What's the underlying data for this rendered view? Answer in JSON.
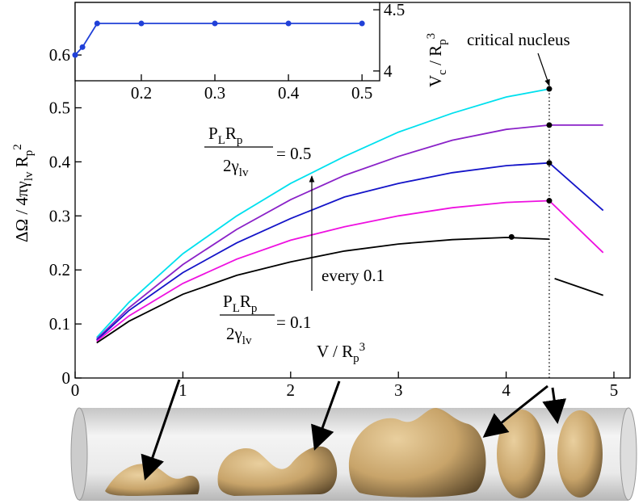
{
  "chart_data": [
    {
      "type": "line",
      "xlabel": [
        {
          "t": "V / R"
        },
        {
          "t": "p",
          "s": "sub"
        },
        {
          "t": "3",
          "s": "sup"
        }
      ],
      "ylabel": [
        {
          "t": "ΔΩ / 4πγ"
        },
        {
          "t": "lv",
          "s": "sub"
        },
        {
          "t": " R"
        },
        {
          "t": "p",
          "s": "sub"
        },
        {
          "t": "2",
          "s": "sup"
        }
      ],
      "xlim": [
        0,
        5.15
      ],
      "ylim": [
        0,
        0.695
      ],
      "xticks": [
        0,
        1,
        2,
        3,
        4,
        5
      ],
      "yticks": [
        0,
        0.1,
        0.2,
        0.3,
        0.4,
        0.5
      ],
      "series": [
        {
          "color": "#00e0ee",
          "x": [
            0.2,
            0.5,
            1,
            1.5,
            2,
            2.5,
            3,
            3.5,
            4,
            4.4
          ],
          "values": [
            0.075,
            0.14,
            0.23,
            0.3,
            0.36,
            0.41,
            0.455,
            0.49,
            0.52,
            0.535
          ]
        },
        {
          "color": "#8a22c8",
          "x": [
            0.2,
            0.5,
            1,
            1.5,
            2,
            2.5,
            3,
            3.5,
            4,
            4.4,
            4.9
          ],
          "values": [
            0.072,
            0.13,
            0.21,
            0.275,
            0.33,
            0.375,
            0.41,
            0.44,
            0.46,
            0.468,
            0.468
          ]
        },
        {
          "color": "#1414c8",
          "x": [
            0.2,
            0.5,
            1,
            1.5,
            2,
            2.5,
            3,
            3.5,
            4,
            4.4,
            4.9
          ],
          "values": [
            0.07,
            0.125,
            0.195,
            0.25,
            0.295,
            0.335,
            0.36,
            0.38,
            0.393,
            0.398,
            0.31
          ]
        },
        {
          "color": "#ee10e0",
          "x": [
            0.2,
            0.5,
            1,
            1.5,
            2,
            2.5,
            3,
            3.5,
            4,
            4.4,
            4.9
          ],
          "values": [
            0.068,
            0.115,
            0.175,
            0.22,
            0.255,
            0.28,
            0.3,
            0.315,
            0.325,
            0.328,
            0.232
          ]
        },
        {
          "color": "#000000",
          "x": [
            0.2,
            0.5,
            1,
            1.5,
            2,
            2.5,
            3,
            3.5,
            4,
            4.4,
            4.42,
            4.45,
            4.9
          ],
          "values": [
            0.065,
            0.105,
            0.155,
            0.19,
            0.215,
            0.235,
            0.248,
            0.256,
            0.26,
            0.257,
            null,
            0.184,
            0.153
          ]
        }
      ],
      "markers": {
        "x": [
          4.4,
          4.4,
          4.4,
          4.4,
          4.05
        ],
        "values": [
          0.535,
          0.468,
          0.398,
          0.328,
          0.261
        ]
      },
      "vline_x": 4.4,
      "annotations": {
        "critical": [
          {
            "t": "critical nucleus"
          }
        ],
        "every": [
          {
            "t": "every 0.1"
          }
        ],
        "top_num": [
          {
            "t": "P"
          },
          {
            "t": "L",
            "s": "sub"
          },
          {
            "t": "R"
          },
          {
            "t": "p",
            "s": "sub"
          }
        ],
        "top_den": [
          {
            "t": "2γ"
          },
          {
            "t": "lv",
            "s": "sub"
          }
        ],
        "top_eq": [
          {
            "t": "= 0.5"
          }
        ],
        "bot_num": [
          {
            "t": "P"
          },
          {
            "t": "L",
            "s": "sub"
          },
          {
            "t": "R"
          },
          {
            "t": "p",
            "s": "sub"
          }
        ],
        "bot_den": [
          {
            "t": "2γ"
          },
          {
            "t": "lv",
            "s": "sub"
          }
        ],
        "bot_eq": [
          {
            "t": "= 0.1"
          }
        ]
      }
    },
    {
      "type": "line",
      "y2label": [
        {
          "t": "V"
        },
        {
          "t": "c",
          "s": "sub"
        },
        {
          "t": " / R"
        },
        {
          "t": "p",
          "s": "sub"
        },
        {
          "t": "3",
          "s": "sup"
        }
      ],
      "xlim": [
        0.11,
        0.524
      ],
      "ylim": [
        0.551,
        0.7
      ],
      "y2lim": [
        3.92,
        4.56
      ],
      "xticks": [
        0.2,
        0.3,
        0.4,
        0.5
      ],
      "yticks": [
        0.6
      ],
      "y2ticks": [
        4,
        4.5
      ],
      "series": [
        {
          "color": "#2040d8",
          "x": [
            0.11,
            0.12,
            0.14,
            0.2,
            0.3,
            0.4,
            0.5
          ],
          "values": [
            0.6,
            0.615,
            0.66,
            0.66,
            0.66,
            0.66,
            0.66
          ]
        }
      ]
    }
  ]
}
